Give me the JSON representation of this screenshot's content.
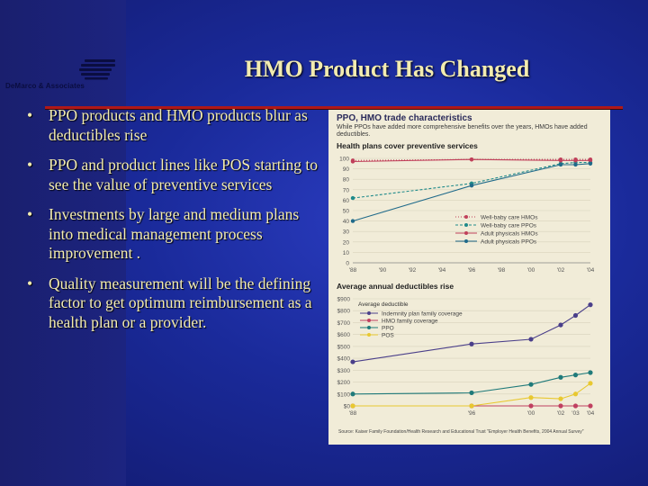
{
  "slide": {
    "title": "HMO Product Has Changed",
    "logo_text": "DeMarco & Associates",
    "bullets": [
      "PPO products and HMO products blur as deductibles rise",
      "PPO and product lines like POS starting to see the value of preventive services",
      "Investments by large and medium plans into medical management process improvement .",
      "Quality measurement will be the defining factor to get optimum reimbursement as a health plan or a provider."
    ],
    "colors": {
      "background": "#1a2a9a",
      "title": "#f3ecb0",
      "rule": "#b01818",
      "figure_bg": "#f1ecd8"
    }
  },
  "figure": {
    "title": "PPO, HMO trade characteristics",
    "subtitle": "While PPOs have added more comprehensive benefits over the years, HMOs have added deductibles.",
    "source": "Source: Kaiser Family Foundation/Health Research and Educational Trust \"Employer Health Benefits, 2004 Annual Survey\""
  },
  "chart_data": [
    {
      "type": "line",
      "title": "Health plans cover preventive services",
      "x": [
        "'88",
        "'90",
        "'92",
        "'94",
        "'96",
        "'98",
        "'00",
        "'02",
        "'04"
      ],
      "ylim": [
        0,
        100
      ],
      "yticks": [
        0,
        10,
        20,
        30,
        40,
        50,
        60,
        70,
        80,
        90,
        100
      ],
      "legend_position": "bottom-right",
      "series": [
        {
          "name": "Well-baby care HMOs",
          "color": "#c0405a",
          "style": "dotted",
          "points": [
            [
              1988,
              98
            ],
            [
              1996,
              99
            ],
            [
              2002,
              99
            ],
            [
              2003,
              99
            ],
            [
              2004,
              99
            ]
          ]
        },
        {
          "name": "Well-baby care PPOs",
          "color": "#1f8a8a",
          "style": "dashed",
          "points": [
            [
              1988,
              62
            ],
            [
              1996,
              76
            ],
            [
              2002,
              95
            ],
            [
              2003,
              96
            ],
            [
              2004,
              96
            ]
          ]
        },
        {
          "name": "Adult physicals HMOs",
          "color": "#c0405a",
          "style": "solid",
          "points": [
            [
              1988,
              97
            ],
            [
              1996,
              99
            ],
            [
              2002,
              98
            ],
            [
              2003,
              98
            ],
            [
              2004,
              98
            ]
          ]
        },
        {
          "name": "Adult physicals PPOs",
          "color": "#1f6a8a",
          "style": "solid",
          "points": [
            [
              1988,
              40
            ],
            [
              1996,
              74
            ],
            [
              2002,
              94
            ],
            [
              2003,
              94
            ],
            [
              2004,
              95
            ]
          ]
        }
      ]
    },
    {
      "type": "line",
      "title": "Average annual deductibles rise",
      "legend_title": "Average deductible",
      "x": [
        "'88",
        "'96",
        "'00",
        "'02",
        "'03",
        "'04"
      ],
      "ylim": [
        0,
        900
      ],
      "yticks": [
        "$0",
        "$100",
        "$200",
        "$300",
        "$400",
        "$500",
        "$600",
        "$700",
        "$800",
        "$900"
      ],
      "legend_position": "top-right",
      "series": [
        {
          "name": "Indemnity plan family coverage",
          "color": "#4a3f8a",
          "points": [
            [
              1988,
              370
            ],
            [
              1996,
              520
            ],
            [
              2000,
              560
            ],
            [
              2002,
              680
            ],
            [
              2003,
              760
            ],
            [
              2004,
              850
            ]
          ]
        },
        {
          "name": "HMO family coverage",
          "color": "#c04060",
          "points": [
            [
              1988,
              0
            ],
            [
              1996,
              0
            ],
            [
              2000,
              0
            ],
            [
              2002,
              0
            ],
            [
              2003,
              0
            ],
            [
              2004,
              0
            ]
          ]
        },
        {
          "name": "PPO",
          "color": "#1f7a7a",
          "points": [
            [
              1988,
              100
            ],
            [
              1996,
              110
            ],
            [
              2000,
              180
            ],
            [
              2002,
              240
            ],
            [
              2003,
              260
            ],
            [
              2004,
              280
            ]
          ]
        },
        {
          "name": "POS",
          "color": "#e8c830",
          "points": [
            [
              1988,
              0
            ],
            [
              1996,
              0
            ],
            [
              2000,
              70
            ],
            [
              2002,
              60
            ],
            [
              2003,
              100
            ],
            [
              2004,
              190
            ]
          ]
        }
      ]
    }
  ]
}
